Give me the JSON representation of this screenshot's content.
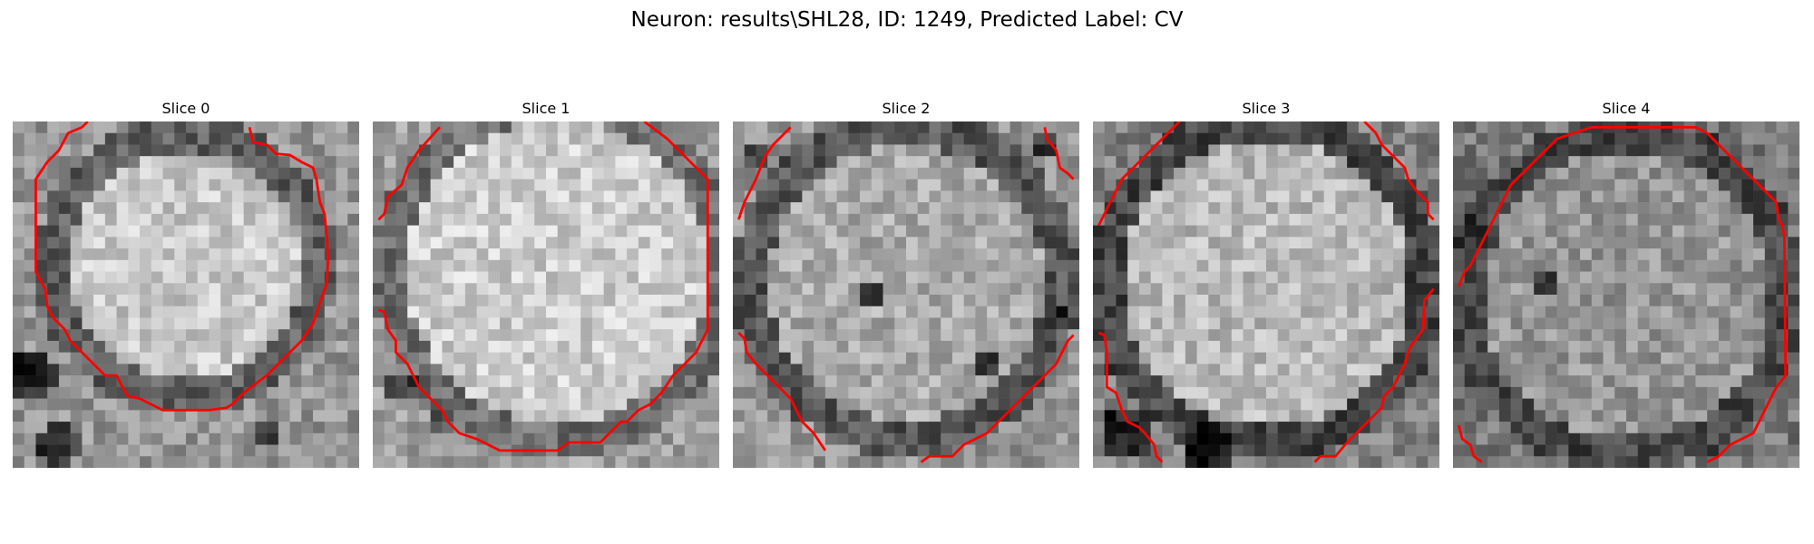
{
  "figure": {
    "title": "Neuron: results\\SHL28, ID: 1249, Predicted Label: CV"
  },
  "panels": [
    {
      "title": "Slice 0",
      "outline_color": "#ff0000"
    },
    {
      "title": "Slice 1",
      "outline_color": "#ff0000"
    },
    {
      "title": "Slice 2",
      "outline_color": "#ff0000"
    },
    {
      "title": "Slice 3",
      "outline_color": "#ff0000"
    },
    {
      "title": "Slice 4",
      "outline_color": "#ff0000"
    }
  ],
  "colors": {
    "outline": "#ff0000",
    "image_colormap": "grayscale"
  }
}
